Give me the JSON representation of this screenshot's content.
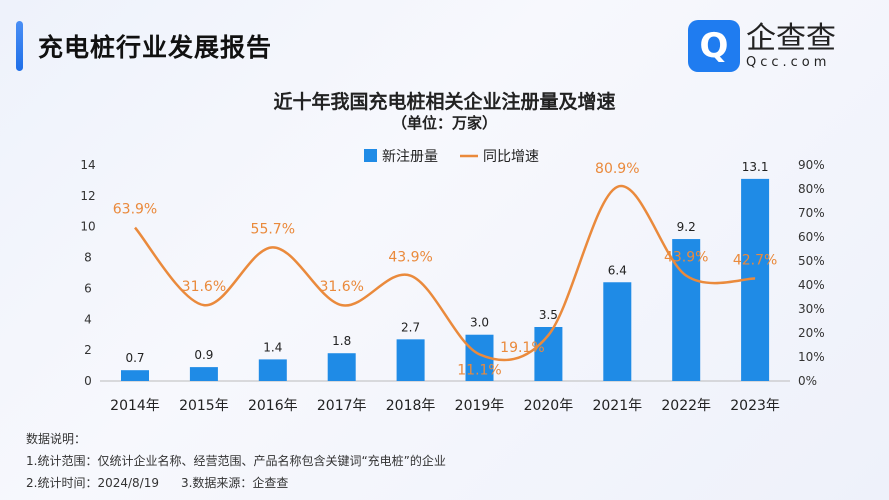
{
  "header": {
    "title": "充电桩行业发展报告"
  },
  "logo": {
    "icon": "Q",
    "name": "企查查",
    "domain": "Qcc.com"
  },
  "chart_data": {
    "type": "bar+line",
    "title": "近十年我国充电桩相关企业注册量及增速",
    "subtitle": "（单位：万家）",
    "categories": [
      "2014年",
      "2015年",
      "2016年",
      "2017年",
      "2018年",
      "2019年",
      "2020年",
      "2021年",
      "2022年",
      "2023年"
    ],
    "series": [
      {
        "name": "新注册量",
        "type": "bar",
        "axis": "left",
        "color": "#1f8be6",
        "values": [
          0.7,
          0.9,
          1.4,
          1.8,
          2.7,
          3.0,
          3.5,
          6.4,
          9.2,
          13.1
        ],
        "labels": [
          "0.7",
          "0.9",
          "1.4",
          "1.8",
          "2.7",
          "3.0",
          "3.5",
          "6.4",
          "9.2",
          "13.1"
        ]
      },
      {
        "name": "同比增速",
        "type": "line",
        "axis": "right",
        "color": "#ea8a3c",
        "values": [
          63.9,
          31.6,
          55.7,
          31.6,
          43.9,
          11.1,
          19.1,
          80.9,
          43.9,
          42.7
        ],
        "labels": [
          "63.9%",
          "31.6%",
          "55.7%",
          "31.6%",
          "43.9%",
          "11.1%",
          "19.1%",
          "80.9%",
          "43.9%",
          "42.7%"
        ]
      }
    ],
    "left_axis": {
      "ylim": [
        0,
        14
      ],
      "ticks": [
        "0",
        "2",
        "4",
        "6",
        "8",
        "10",
        "12",
        "14"
      ]
    },
    "right_axis": {
      "ylim": [
        0,
        90
      ],
      "ticks": [
        "0%",
        "10%",
        "20%",
        "30%",
        "40%",
        "50%",
        "60%",
        "70%",
        "80%",
        "90%"
      ]
    },
    "legend": "top-center",
    "grid": false
  },
  "notes": {
    "heading": "数据说明：",
    "line1": "1.统计范围：仅统计企业名称、经营范围、产品名称包含关键词“充电桩”的企业",
    "line2": "2.统计时间：2024/8/19",
    "line3": "3.数据来源：企查查"
  }
}
